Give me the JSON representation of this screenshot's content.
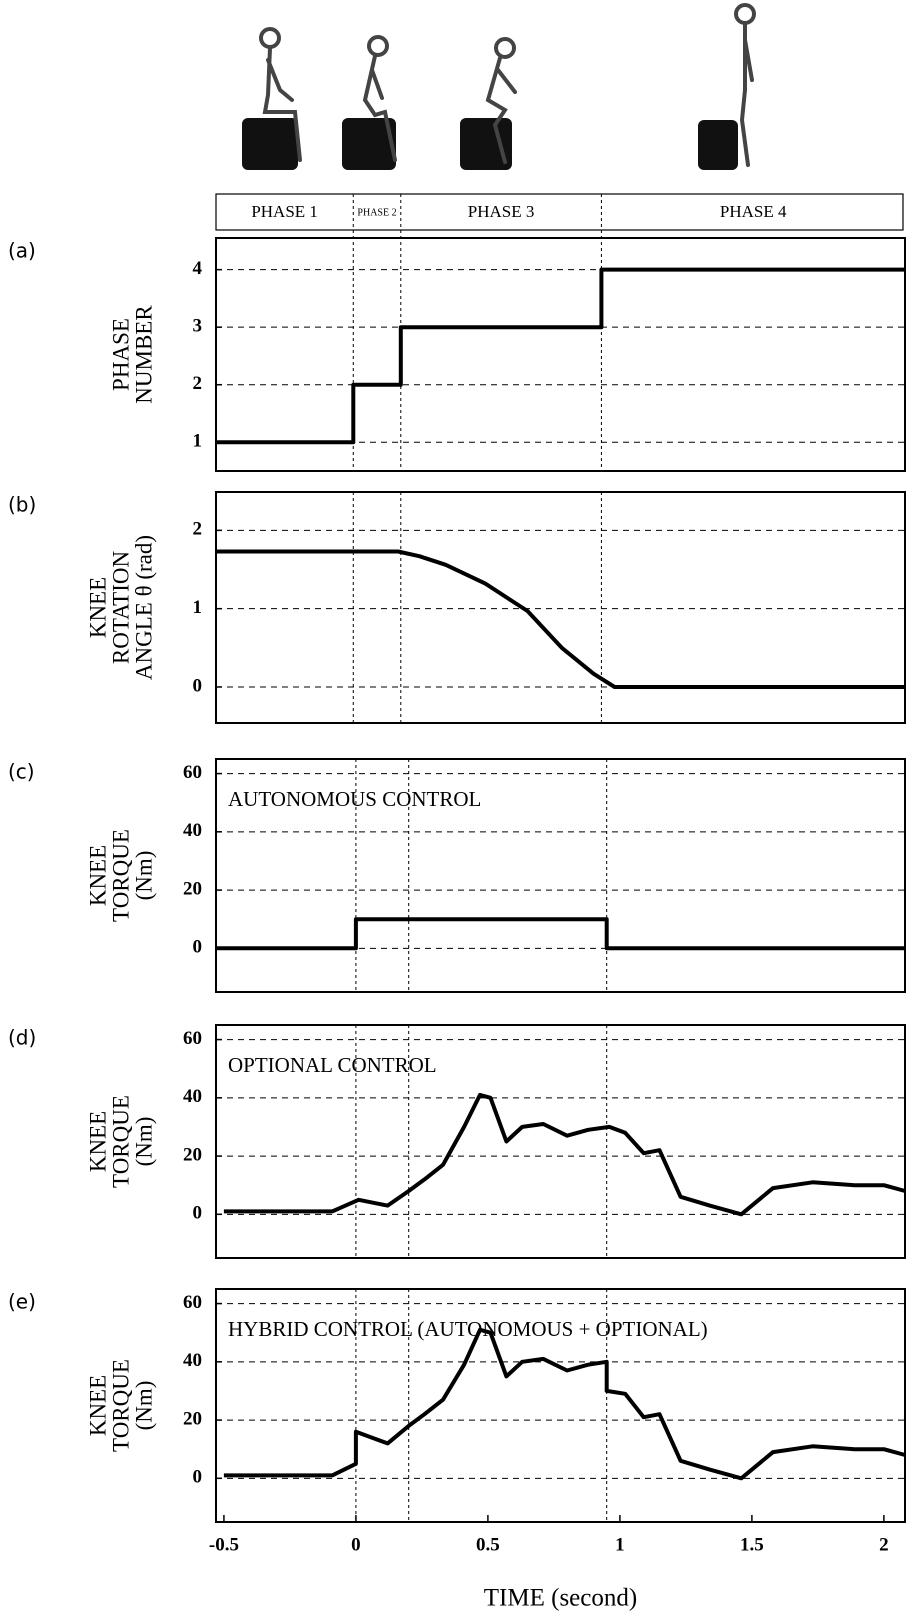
{
  "chart_data": [
    {
      "type": "line",
      "label": "(a)",
      "ylabel": [
        "PHASE",
        "NUMBER"
      ],
      "phases": [
        "PHASE 1",
        "PHASE 2",
        "PHASE 3",
        "PHASE 4"
      ],
      "x": [
        -0.53,
        -0.01,
        -0.01,
        0.17,
        0.17,
        0.93,
        0.93,
        2.08
      ],
      "values": [
        1,
        1,
        2,
        2,
        3,
        3,
        4,
        4
      ],
      "color": "#000000",
      "xlim": [
        -0.53,
        2.08
      ],
      "ylim": [
        0.5,
        4.55
      ],
      "yticks": [
        1,
        2,
        3,
        4
      ],
      "xlines": [
        -0.01,
        0.17,
        0.93
      ],
      "grid": true
    },
    {
      "type": "line",
      "label": "(b)",
      "ylabel": [
        "KNEE",
        "ROTATION",
        "ANGLE θ (rad)"
      ],
      "x": [
        -0.53,
        0.16,
        0.24,
        0.34,
        0.49,
        0.65,
        0.78,
        0.9,
        0.98,
        2.08
      ],
      "values": [
        1.73,
        1.73,
        1.67,
        1.56,
        1.32,
        0.97,
        0.5,
        0.17,
        0,
        0
      ],
      "color": "#000000",
      "xlim": [
        -0.53,
        2.08
      ],
      "ylim": [
        -0.46,
        2.49
      ],
      "yticks": [
        0,
        1,
        2
      ],
      "xlines": [
        -0.01,
        0.17,
        0.93
      ],
      "grid": true
    },
    {
      "type": "line",
      "label": "(c)",
      "ylabel": [
        "KNEE",
        "TORQUE",
        "(Nm)"
      ],
      "annotation": "AUTONOMOUS CONTROL",
      "x": [
        -0.53,
        0,
        0,
        0.95,
        0.95,
        2.08
      ],
      "values": [
        0,
        0,
        10,
        10,
        0,
        0
      ],
      "color": "#000000",
      "xlim": [
        -0.53,
        2.08
      ],
      "ylim": [
        -15,
        65
      ],
      "yticks": [
        0,
        20,
        40,
        60
      ],
      "xlines": [
        0,
        0.2,
        0.95
      ],
      "grid": true
    },
    {
      "type": "line",
      "label": "(d)",
      "ylabel": [
        "KNEE",
        "TORQUE",
        "(Nm)"
      ],
      "annotation": "OPTIONAL CONTROL",
      "x": [
        -0.5,
        -0.09,
        0.01,
        0.12,
        0.2,
        0.26,
        0.33,
        0.41,
        0.47,
        0.51,
        0.57,
        0.63,
        0.71,
        0.8,
        0.88,
        0.96,
        1.02,
        1.09,
        1.15,
        1.23,
        1.34,
        1.46,
        1.58,
        1.73,
        1.89,
        2.0,
        2.08
      ],
      "values": [
        1,
        1,
        5,
        3,
        8,
        12,
        17,
        30,
        41,
        40,
        25,
        30,
        31,
        27,
        29,
        30,
        28,
        21,
        22,
        6,
        3,
        0,
        9,
        11,
        10,
        10,
        8
      ],
      "color": "#000000",
      "xlim": [
        -0.53,
        2.08
      ],
      "ylim": [
        -15,
        65
      ],
      "yticks": [
        0,
        20,
        40,
        60
      ],
      "xlines": [
        0,
        0.2,
        0.95
      ],
      "grid": true
    },
    {
      "type": "line",
      "label": "(e)",
      "ylabel": [
        "KNEE",
        "TORQUE",
        "(Nm)"
      ],
      "annotation": "HYBRID CONTROL   (AUTONOMOUS + OPTIONAL)",
      "x": [
        -0.5,
        -0.09,
        0,
        0,
        0.12,
        0.2,
        0.26,
        0.33,
        0.41,
        0.47,
        0.51,
        0.57,
        0.63,
        0.71,
        0.8,
        0.88,
        0.95,
        0.95,
        1.02,
        1.09,
        1.15,
        1.23,
        1.34,
        1.46,
        1.58,
        1.73,
        1.89,
        2.0,
        2.08
      ],
      "values": [
        1,
        1,
        5,
        16,
        12,
        18,
        22,
        27,
        39,
        51,
        50,
        35,
        40,
        41,
        37,
        39,
        40,
        30,
        29,
        21,
        22,
        6,
        3,
        0,
        9,
        11,
        10,
        10,
        8
      ],
      "color": "#000000",
      "xlim": [
        -0.53,
        2.08
      ],
      "ylim": [
        -15,
        65
      ],
      "yticks": [
        0,
        20,
        40,
        60
      ],
      "xticks": [
        -0.5,
        0,
        0.5,
        1,
        1.5,
        2
      ],
      "xlabel": "TIME  (second)",
      "xlines": [
        0,
        0.2,
        0.95
      ],
      "grid": true
    }
  ]
}
